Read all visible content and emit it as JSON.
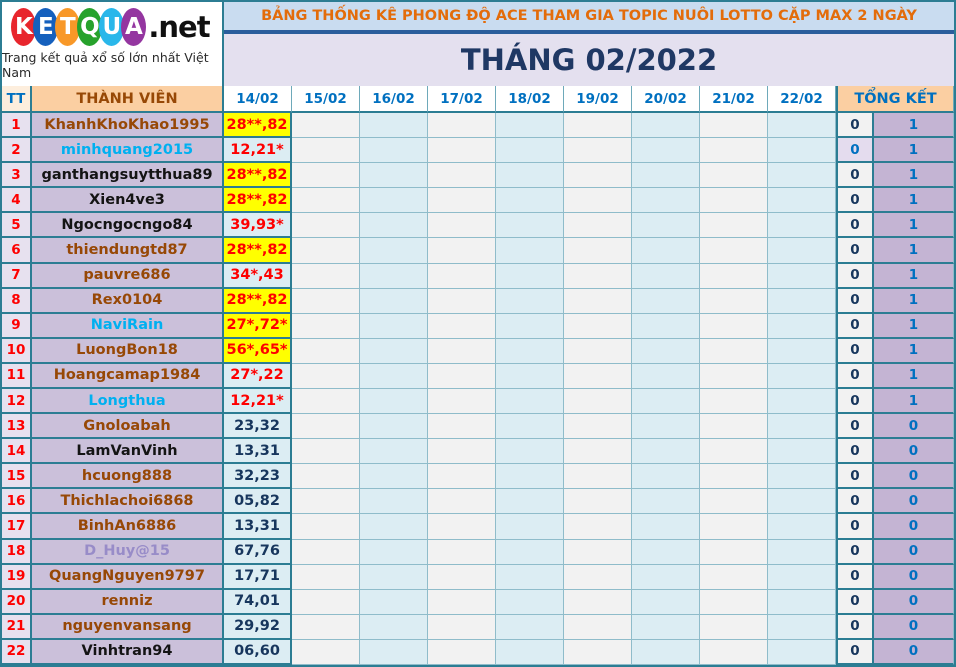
{
  "logo": {
    "letters": [
      {
        "ch": "K",
        "color": "#e8262d"
      },
      {
        "ch": "E",
        "color": "#1560bd"
      },
      {
        "ch": "T",
        "color": "#f89828"
      },
      {
        "ch": "Q",
        "color": "#27a22c"
      },
      {
        "ch": "U",
        "color": "#29b7ea"
      },
      {
        "ch": "A",
        "color": "#9436a0"
      }
    ],
    "suffix": ".net",
    "tagline": "Trang kết quả xổ số lớn nhất Việt Nam"
  },
  "header": {
    "title": "BẢNG THỐNG KÊ PHONG ĐỘ ACE THAM GIA TOPIC NUÔI LOTTO CẶP MAX 2 NGÀY",
    "month_title": "THÁNG 02/2022"
  },
  "table": {
    "tt_header": "TT",
    "member_header": "THÀNH VIÊN",
    "date_headers": [
      "14/02",
      "15/02",
      "16/02",
      "17/02",
      "18/02",
      "19/02",
      "20/02",
      "21/02",
      "22/02"
    ],
    "summary_header": "TỔNG KẾT",
    "rows": [
      {
        "tt": "1",
        "name": "KhanhKhoKhao1995",
        "name_color": "brown",
        "value": "28**,82",
        "value_bg": "yellow",
        "value_color": "red",
        "sum1": "0",
        "sum1_bg": "gray",
        "sum1_color": "navy",
        "sum2": "1"
      },
      {
        "tt": "2",
        "name": "minhquang2015",
        "name_color": "blue",
        "value": "12,21*",
        "value_bg": "cyan",
        "value_color": "red",
        "sum1": "0",
        "sum1_bg": "lavender",
        "sum1_color": "blue",
        "sum2": "1"
      },
      {
        "tt": "3",
        "name": "ganthangsuytthua89",
        "name_color": "black",
        "value": "28**,82",
        "value_bg": "yellow",
        "value_color": "red",
        "sum1": "0",
        "sum1_bg": "gray",
        "sum1_color": "navy",
        "sum2": "1"
      },
      {
        "tt": "4",
        "name": "Xien4ve3",
        "name_color": "black",
        "value": "28**,82",
        "value_bg": "yellow",
        "value_color": "red",
        "sum1": "0",
        "sum1_bg": "gray",
        "sum1_color": "navy",
        "sum2": "1"
      },
      {
        "tt": "5",
        "name": "Ngocngocngo84",
        "name_color": "black",
        "value": "39,93*",
        "value_bg": "cyan",
        "value_color": "red",
        "sum1": "0",
        "sum1_bg": "gray",
        "sum1_color": "navy",
        "sum2": "1"
      },
      {
        "tt": "6",
        "name": "thiendungtd87",
        "name_color": "brown",
        "value": "28**,82",
        "value_bg": "yellow",
        "value_color": "red",
        "sum1": "0",
        "sum1_bg": "gray",
        "sum1_color": "navy",
        "sum2": "1"
      },
      {
        "tt": "7",
        "name": "pauvre686",
        "name_color": "brown",
        "value": "34*,43",
        "value_bg": "cyan",
        "value_color": "red",
        "sum1": "0",
        "sum1_bg": "gray",
        "sum1_color": "navy",
        "sum2": "1"
      },
      {
        "tt": "8",
        "name": "Rex0104",
        "name_color": "brown",
        "value": "28**,82",
        "value_bg": "yellow",
        "value_color": "red",
        "sum1": "0",
        "sum1_bg": "cyan",
        "sum1_color": "navy",
        "sum2": "1"
      },
      {
        "tt": "9",
        "name": "NaviRain",
        "name_color": "blue",
        "value": "27*,72*",
        "value_bg": "yellow",
        "value_color": "red",
        "sum1": "0",
        "sum1_bg": "gray",
        "sum1_color": "navy",
        "sum2": "1"
      },
      {
        "tt": "10",
        "name": "LuongBon18",
        "name_color": "brown",
        "value": "56*,65*",
        "value_bg": "yellow",
        "value_color": "red",
        "sum1": "0",
        "sum1_bg": "cyan",
        "sum1_color": "navy",
        "sum2": "1"
      },
      {
        "tt": "11",
        "name": "Hoangcamap1984",
        "name_color": "brown",
        "value": "27*,22",
        "value_bg": "cyan",
        "value_color": "red",
        "sum1": "0",
        "sum1_bg": "gray",
        "sum1_color": "navy",
        "sum2": "1"
      },
      {
        "tt": "12",
        "name": "Longthua",
        "name_color": "blue",
        "value": "12,21*",
        "value_bg": "cyan",
        "value_color": "red",
        "sum1": "0",
        "sum1_bg": "gray",
        "sum1_color": "navy",
        "sum2": "1"
      },
      {
        "tt": "13",
        "name": "Gnoloabah",
        "name_color": "brown",
        "value": "23,32",
        "value_bg": "cyan",
        "value_color": "navy",
        "sum1": "0",
        "sum1_bg": "gray",
        "sum1_color": "navy",
        "sum2": "0"
      },
      {
        "tt": "14",
        "name": "LamVanVinh",
        "name_color": "black",
        "value": "13,31",
        "value_bg": "cyan",
        "value_color": "navy",
        "sum1": "0",
        "sum1_bg": "cyan",
        "sum1_color": "navy",
        "sum2": "0"
      },
      {
        "tt": "15",
        "name": "hcuong888",
        "name_color": "brown",
        "value": "32,23",
        "value_bg": "cyan",
        "value_color": "navy",
        "sum1": "0",
        "sum1_bg": "cyan",
        "sum1_color": "navy",
        "sum2": "0"
      },
      {
        "tt": "16",
        "name": "Thichlachoi6868",
        "name_color": "brown",
        "value": "05,82",
        "value_bg": "cyan",
        "value_color": "navy",
        "sum1": "0",
        "sum1_bg": "cyan",
        "sum1_color": "navy",
        "sum2": "0"
      },
      {
        "tt": "17",
        "name": "BinhAn6886",
        "name_color": "brown",
        "value": "13,31",
        "value_bg": "cyan",
        "value_color": "navy",
        "sum1": "0",
        "sum1_bg": "cyan",
        "sum1_color": "navy",
        "sum2": "0"
      },
      {
        "tt": "18",
        "name": "D_Huy@15",
        "name_color": "purple",
        "value": "67,76",
        "value_bg": "cyan",
        "value_color": "navy",
        "sum1": "0",
        "sum1_bg": "gray",
        "sum1_color": "navy",
        "sum2": "0"
      },
      {
        "tt": "19",
        "name": "QuangNguyen9797",
        "name_color": "brown",
        "value": "17,71",
        "value_bg": "cyan",
        "value_color": "navy",
        "sum1": "0",
        "sum1_bg": "cyan",
        "sum1_color": "navy",
        "sum2": "0"
      },
      {
        "tt": "20",
        "name": "renniz",
        "name_color": "brown",
        "value": "74,01",
        "value_bg": "cyan",
        "value_color": "navy",
        "sum1": "0",
        "sum1_bg": "gray",
        "sum1_color": "navy",
        "sum2": "0"
      },
      {
        "tt": "21",
        "name": "nguyenvansang",
        "name_color": "brown",
        "value": "29,92",
        "value_bg": "cyan",
        "value_color": "navy",
        "sum1": "0",
        "sum1_bg": "gray",
        "sum1_color": "navy",
        "sum2": "0"
      },
      {
        "tt": "22",
        "name": "Vinhtran94",
        "name_color": "black",
        "value": "06,60",
        "value_bg": "cyan",
        "value_color": "navy",
        "sum1": "0",
        "sum1_bg": "gray",
        "sum1_color": "navy",
        "sum2": "0"
      }
    ]
  },
  "colors": {
    "border_strong": "#2c7d93",
    "border_light": "#8fbcca",
    "title_text": "#e36c0a",
    "title_bg": "#c9dcf0",
    "month_text": "#1f3864",
    "month_bg": "#e4e0ef",
    "highlight_yellow": "#ffff00",
    "cell_cyan": "#dcedf3",
    "cell_gray": "#f2f2f2",
    "name_bg": "#cbc0da",
    "summary_bg": "#c4b4d3",
    "value_red": "#fe0000",
    "value_navy": "#17365d",
    "header_blue": "#0070c0",
    "header_brown": "#974806"
  }
}
